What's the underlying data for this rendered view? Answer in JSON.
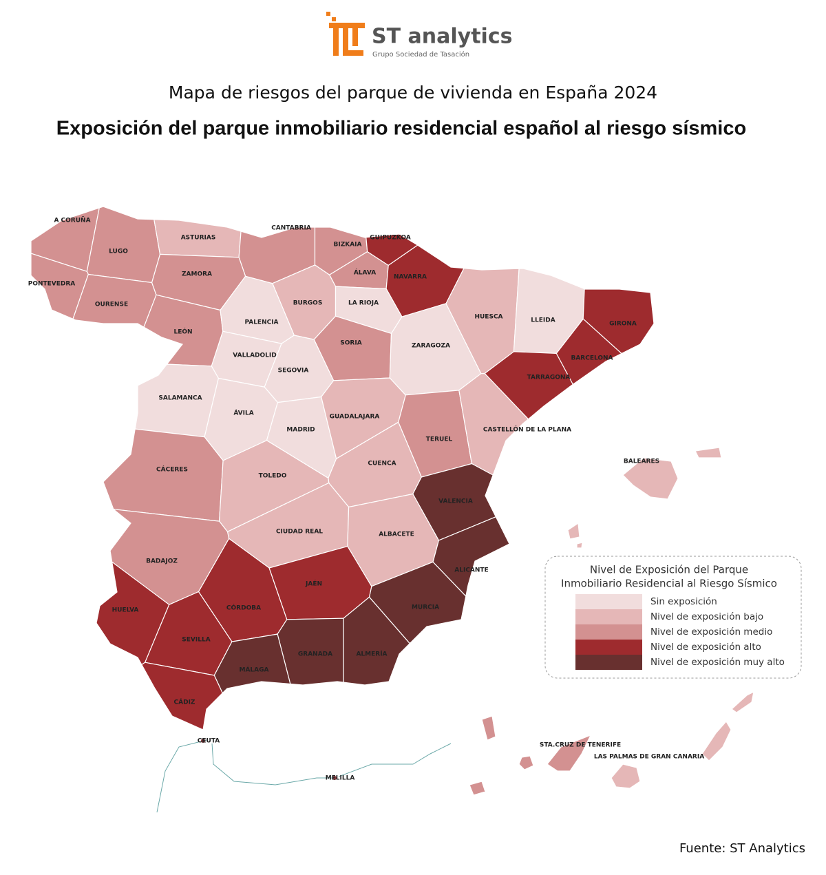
{
  "header": {
    "logo_name": "ST analytics",
    "logo_tagline": "Grupo Sociedad de Tasación",
    "subtitle": "Mapa de riesgos del parque de vivienda en España 2024",
    "title": "Exposición del parque inmobiliario residencial español al riesgo sísmico"
  },
  "legend": {
    "title_lines": [
      "Nivel de Exposición del Parque",
      "Inmobiliario Residencial al Riesgo Sísmico"
    ],
    "levels": [
      {
        "label": "Sin exposición",
        "color": "#f1dddd"
      },
      {
        "label": "Nivel de exposición bajo",
        "color": "#e5b7b7"
      },
      {
        "label": "Nivel de exposición medio",
        "color": "#d39191"
      },
      {
        "label": "Nivel de exposición alto",
        "color": "#9e2b2e"
      },
      {
        "label": "Nivel de exposición muy alto",
        "color": "#68302f"
      }
    ]
  },
  "provinces": [
    {
      "name": "A CORUÑA",
      "color": "#d39191"
    },
    {
      "name": "LUGO",
      "color": "#d39191"
    },
    {
      "name": "PONTEVEDRA",
      "color": "#d39191"
    },
    {
      "name": "OURENSE",
      "color": "#d39191"
    },
    {
      "name": "ASTURIAS",
      "color": "#e5b7b7"
    },
    {
      "name": "CANTABRIA",
      "color": "#d39191"
    },
    {
      "name": "ZAMORA",
      "color": "#d39191"
    },
    {
      "name": "LEÓN",
      "color": "#d39191"
    },
    {
      "name": "BIZKAIA",
      "color": "#d39191"
    },
    {
      "name": "GUIPUZKOA",
      "color": "#9e2b2e"
    },
    {
      "name": "ÁLAVA",
      "color": "#d39191"
    },
    {
      "name": "NAVARRA",
      "color": "#9e2b2e"
    },
    {
      "name": "BURGOS",
      "color": "#e5b7b7"
    },
    {
      "name": "LA RIOJA",
      "color": "#f1dddd"
    },
    {
      "name": "PALENCIA",
      "color": "#f1dddd"
    },
    {
      "name": "SORIA",
      "color": "#d39191"
    },
    {
      "name": "VALLADOLID",
      "color": "#f1dddd"
    },
    {
      "name": "SEGOVIA",
      "color": "#f1dddd"
    },
    {
      "name": "SALAMANCA",
      "color": "#f1dddd"
    },
    {
      "name": "ÁVILA",
      "color": "#f1dddd"
    },
    {
      "name": "MADRID",
      "color": "#f1dddd"
    },
    {
      "name": "GUADALAJARA",
      "color": "#e5b7b7"
    },
    {
      "name": "ZARAGOZA",
      "color": "#f1dddd"
    },
    {
      "name": "HUESCA",
      "color": "#e5b7b7"
    },
    {
      "name": "LLEIDA",
      "color": "#f1dddd"
    },
    {
      "name": "GIRONA",
      "color": "#9e2b2e"
    },
    {
      "name": "BARCELONA",
      "color": "#9e2b2e"
    },
    {
      "name": "TARRAGONA",
      "color": "#9e2b2e"
    },
    {
      "name": "TERUEL",
      "color": "#d39191"
    },
    {
      "name": "CASTELLÓN DE LA PLANA",
      "color": "#e5b7b7"
    },
    {
      "name": "CUENCA",
      "color": "#e5b7b7"
    },
    {
      "name": "VALENCIA",
      "color": "#68302f"
    },
    {
      "name": "CÁCERES",
      "color": "#d39191"
    },
    {
      "name": "TOLEDO",
      "color": "#e5b7b7"
    },
    {
      "name": "CIUDAD REAL",
      "color": "#e5b7b7"
    },
    {
      "name": "ALBACETE",
      "color": "#e5b7b7"
    },
    {
      "name": "ALICANTE",
      "color": "#68302f"
    },
    {
      "name": "MURCIA",
      "color": "#68302f"
    },
    {
      "name": "BADAJOZ",
      "color": "#d39191"
    },
    {
      "name": "CÓRDOBA",
      "color": "#9e2b2e"
    },
    {
      "name": "JAÉN",
      "color": "#9e2b2e"
    },
    {
      "name": "HUELVA",
      "color": "#9e2b2e"
    },
    {
      "name": "SEVILLA",
      "color": "#9e2b2e"
    },
    {
      "name": "GRANADA",
      "color": "#68302f"
    },
    {
      "name": "ALMERÍA",
      "color": "#68302f"
    },
    {
      "name": "MÁLAGA",
      "color": "#68302f"
    },
    {
      "name": "CÁDIZ",
      "color": "#9e2b2e"
    },
    {
      "name": "BALEARES",
      "color": "#e5b7b7"
    },
    {
      "name": "STA.CRUZ DE TENERIFE",
      "color": "#d39191"
    },
    {
      "name": "LAS PALMAS DE GRAN CANARIA",
      "color": "#e5b7b7"
    }
  ],
  "cities": [
    {
      "name": "CEUTA",
      "color": "#8a3a3e"
    },
    {
      "name": "MELILLA",
      "color": "#8a3a3e"
    }
  ],
  "source": "Fuente: ST Analytics"
}
